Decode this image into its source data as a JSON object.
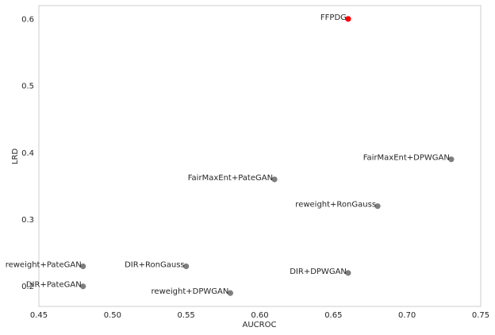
{
  "chart_data": {
    "type": "scatter",
    "xlabel": "AUCROC",
    "ylabel": "LRD",
    "xlim": [
      0.45,
      0.75
    ],
    "ylim": [
      0.17,
      0.62
    ],
    "x_ticks": [
      "0.45",
      "0.50",
      "0.55",
      "0.60",
      "0.65",
      "0.70",
      "0.75"
    ],
    "y_ticks": [
      "0.2",
      "0.3",
      "0.4",
      "0.5",
      "0.6"
    ],
    "grid": false,
    "points": [
      {
        "label": "FFPDG",
        "x": 0.66,
        "y": 0.6,
        "color": "#ff0000"
      },
      {
        "label": "FairMaxEnt+DPWGAN",
        "x": 0.73,
        "y": 0.39,
        "color": "#7f7f7f"
      },
      {
        "label": "FairMaxEnt+PateGAN",
        "x": 0.61,
        "y": 0.36,
        "color": "#7f7f7f"
      },
      {
        "label": "reweight+RonGauss",
        "x": 0.68,
        "y": 0.32,
        "color": "#7f7f7f"
      },
      {
        "label": "reweight+PateGAN",
        "x": 0.48,
        "y": 0.23,
        "color": "#7f7f7f"
      },
      {
        "label": "DIR+RonGauss",
        "x": 0.55,
        "y": 0.23,
        "color": "#7f7f7f"
      },
      {
        "label": "DIR+DPWGAN",
        "x": 0.66,
        "y": 0.22,
        "color": "#7f7f7f"
      },
      {
        "label": "DIR+PateGAN",
        "x": 0.48,
        "y": 0.2,
        "color": "#7f7f7f"
      },
      {
        "label": "reweight+DPWGAN",
        "x": 0.58,
        "y": 0.19,
        "color": "#7f7f7f"
      }
    ]
  }
}
